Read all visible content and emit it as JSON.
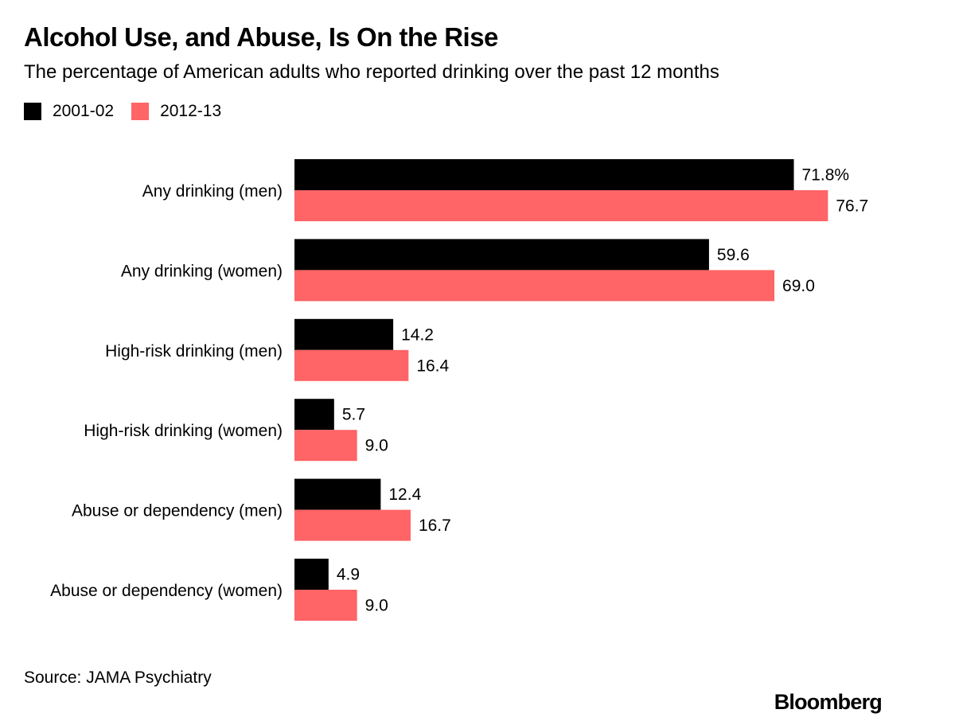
{
  "chart_data": {
    "type": "bar",
    "orientation": "horizontal",
    "title": "Alcohol Use, and Abuse, Is On the Rise",
    "subtitle": "The percentage of American adults who reported drinking over the past 12 months",
    "categories": [
      "Any drinking (men)",
      "Any drinking (women)",
      "High-risk drinking (men)",
      "High-risk drinking (women)",
      "Abuse or dependency (men)",
      "Abuse or dependency (women)"
    ],
    "series": [
      {
        "name": "2001-02",
        "color": "#000000",
        "values": [
          71.8,
          59.6,
          14.2,
          5.7,
          12.4,
          4.9
        ],
        "labels": [
          "71.8%",
          "59.6",
          "14.2",
          "5.7",
          "12.4",
          "4.9"
        ]
      },
      {
        "name": "2012-13",
        "color": "#ff6466",
        "values": [
          76.7,
          69.0,
          16.4,
          9.0,
          16.7,
          9.0
        ],
        "labels": [
          "76.7",
          "69.0",
          "16.4",
          "9.0",
          "16.7",
          "9.0"
        ]
      }
    ],
    "xlim": [
      0,
      100
    ],
    "xlabel": "",
    "ylabel": "",
    "grid": false,
    "legend_position": "top-left"
  },
  "source": "Source: JAMA Psychiatry",
  "brand": "Bloomberg"
}
